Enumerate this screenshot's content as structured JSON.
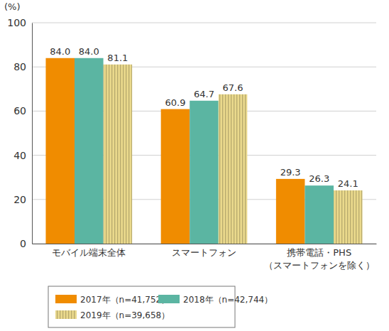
{
  "chart_data": {
    "type": "bar",
    "ylabel": "(%)",
    "categories": [
      "モバイル端末全体",
      "スマートフォン",
      "携帯電話・PHS\n（スマートフォンを除く）"
    ],
    "series": [
      {
        "name": "2017年（n=41,752）",
        "color": "#f08c00",
        "values": [
          84.0,
          60.9,
          29.3
        ],
        "value_labels": [
          "84.0",
          "60.9",
          "29.3"
        ]
      },
      {
        "name": "2018年（n=42,744）",
        "color": "#5bb5a2",
        "values": [
          84.0,
          64.7,
          26.3
        ],
        "value_labels": [
          "84.0",
          "64.7",
          "26.3"
        ]
      },
      {
        "name": "2019年（n=39,658）",
        "color": "#ead98c",
        "values": [
          81.1,
          67.6,
          24.1
        ],
        "value_labels": [
          "81.1",
          "67.6",
          "24.1"
        ]
      }
    ],
    "ylim": [
      0,
      100
    ],
    "yticks": [
      0,
      20,
      40,
      60,
      80,
      100
    ],
    "grid": true,
    "data_labels": true,
    "legend": "bottom"
  }
}
